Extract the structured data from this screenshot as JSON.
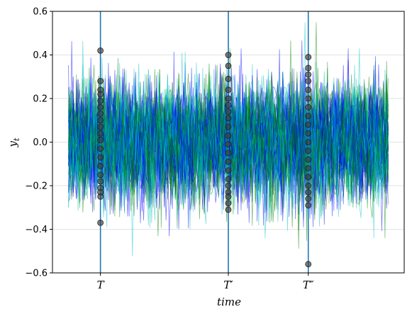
{
  "chart_data": {
    "type": "line",
    "title": "",
    "xlabel": "time",
    "ylabel": "y",
    "ylabel_subscript": "t",
    "ylim": [
      -0.6,
      0.6
    ],
    "yticks": [
      "0.6",
      "0.4",
      "0.2",
      "0.0",
      "−0.2",
      "−0.4",
      "−0.6"
    ],
    "ytick_values": [
      0.6,
      0.4,
      0.2,
      0.0,
      -0.2,
      -0.4,
      -0.6
    ],
    "xlim": [
      -10,
      210
    ],
    "x_range": [
      0,
      200
    ],
    "grid": "horizontal",
    "legend": "none",
    "num_paths": 60,
    "path_colors": [
      "#0000ff",
      "#008000",
      "#00bfbf"
    ],
    "path_std": 0.13,
    "vertical_markers": [
      {
        "label": "T",
        "x": 20,
        "values": [
          0.42,
          0.28,
          0.24,
          0.22,
          0.19,
          0.16,
          0.13,
          0.1,
          0.07,
          0.04,
          0.01,
          -0.03,
          -0.07,
          -0.11,
          -0.15,
          -0.18,
          -0.21,
          -0.23,
          -0.25,
          -0.37
        ]
      },
      {
        "label": "T′",
        "x": 100,
        "values": [
          0.4,
          0.35,
          0.29,
          0.24,
          0.2,
          0.17,
          0.14,
          0.11,
          0.07,
          0.03,
          -0.01,
          -0.05,
          -0.09,
          -0.13,
          -0.17,
          -0.2,
          -0.23,
          -0.25,
          -0.28,
          -0.31
        ]
      },
      {
        "label": "T″",
        "x": 150,
        "values": [
          0.39,
          0.34,
          0.31,
          0.28,
          0.24,
          0.2,
          0.16,
          0.12,
          0.08,
          0.04,
          0.0,
          -0.04,
          -0.08,
          -0.12,
          -0.16,
          -0.2,
          -0.23,
          -0.26,
          -0.29,
          -0.56
        ]
      }
    ],
    "marker_line_color": "#1f77b4"
  }
}
